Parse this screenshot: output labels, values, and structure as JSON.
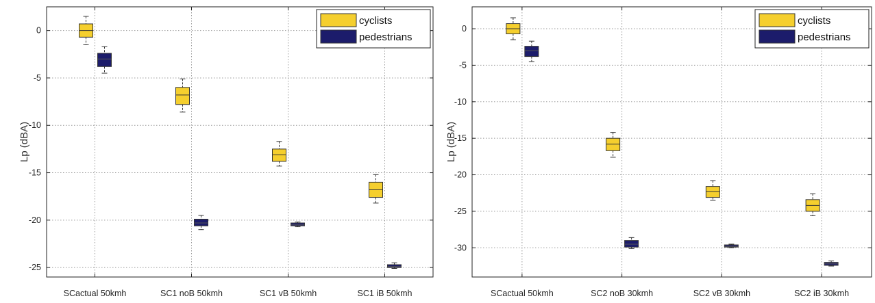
{
  "chart_data": [
    {
      "type": "boxplot",
      "ylabel": "Lp (dBA)",
      "ylim": [
        -26,
        2.5
      ],
      "yticks": [
        0,
        -5,
        -10,
        -15,
        -20,
        -25
      ],
      "categories": [
        "SCactual 50kmh",
        "SC1 noB 50kmh",
        "SC1 vB 50kmh",
        "SC1 iB 50kmh"
      ],
      "grid": true,
      "legend": {
        "position": "top-right",
        "entries": [
          "cyclists",
          "pedestrians"
        ]
      },
      "colors": {
        "cyclists": "#f5cf2e",
        "pedestrians": "#1c1c6b"
      },
      "series": [
        {
          "name": "cyclists",
          "boxes": [
            {
              "min": -1.5,
              "q1": -0.7,
              "median": 0.0,
              "q3": 0.7,
              "max": 1.5
            },
            {
              "min": -8.6,
              "q1": -7.8,
              "median": -6.8,
              "q3": -6.0,
              "max": -5.1
            },
            {
              "min": -14.3,
              "q1": -13.8,
              "median": -13.1,
              "q3": -12.5,
              "max": -11.7
            },
            {
              "min": -18.2,
              "q1": -17.6,
              "median": -16.8,
              "q3": -16.0,
              "max": -15.2
            }
          ]
        },
        {
          "name": "pedestrians",
          "boxes": [
            {
              "min": -4.5,
              "q1": -3.8,
              "median": -3.0,
              "q3": -2.4,
              "max": -1.7
            },
            {
              "min": -21.0,
              "q1": -20.6,
              "median": -20.3,
              "q3": -19.9,
              "max": -19.5
            },
            {
              "min": -20.7,
              "q1": -20.6,
              "median": -20.5,
              "q3": -20.3,
              "max": -20.2
            },
            {
              "min": -25.1,
              "q1": -25.0,
              "median": -24.9,
              "q3": -24.7,
              "max": -24.5
            }
          ]
        }
      ]
    },
    {
      "type": "boxplot",
      "ylabel": "Lp (dBA)",
      "ylim": [
        -34,
        3
      ],
      "yticks": [
        0,
        -5,
        -10,
        -15,
        -20,
        -25,
        -30
      ],
      "categories": [
        "SCactual 50kmh",
        "SC2 noB 30kmh",
        "SC2 vB 30kmh",
        "SC2 iB 30kmh"
      ],
      "grid": true,
      "legend": {
        "position": "top-right",
        "entries": [
          "cyclists",
          "pedestrians"
        ]
      },
      "colors": {
        "cyclists": "#f5cf2e",
        "pedestrians": "#1c1c6b"
      },
      "series": [
        {
          "name": "cyclists",
          "boxes": [
            {
              "min": -1.5,
              "q1": -0.7,
              "median": 0.0,
              "q3": 0.7,
              "max": 1.5
            },
            {
              "min": -17.6,
              "q1": -16.7,
              "median": -15.8,
              "q3": -15.0,
              "max": -14.2
            },
            {
              "min": -23.5,
              "q1": -23.1,
              "median": -22.3,
              "q3": -21.6,
              "max": -20.8
            },
            {
              "min": -25.6,
              "q1": -25.0,
              "median": -24.2,
              "q3": -23.4,
              "max": -22.6
            }
          ]
        },
        {
          "name": "pedestrians",
          "boxes": [
            {
              "min": -4.5,
              "q1": -3.8,
              "median": -3.0,
              "q3": -2.4,
              "max": -1.7
            },
            {
              "min": -30.1,
              "q1": -29.9,
              "median": -29.5,
              "q3": -29.0,
              "max": -28.6
            },
            {
              "min": -30.0,
              "q1": -29.9,
              "median": -29.8,
              "q3": -29.6,
              "max": -29.5
            },
            {
              "min": -32.5,
              "q1": -32.4,
              "median": -32.2,
              "q3": -32.0,
              "max": -31.8
            }
          ]
        }
      ]
    }
  ]
}
